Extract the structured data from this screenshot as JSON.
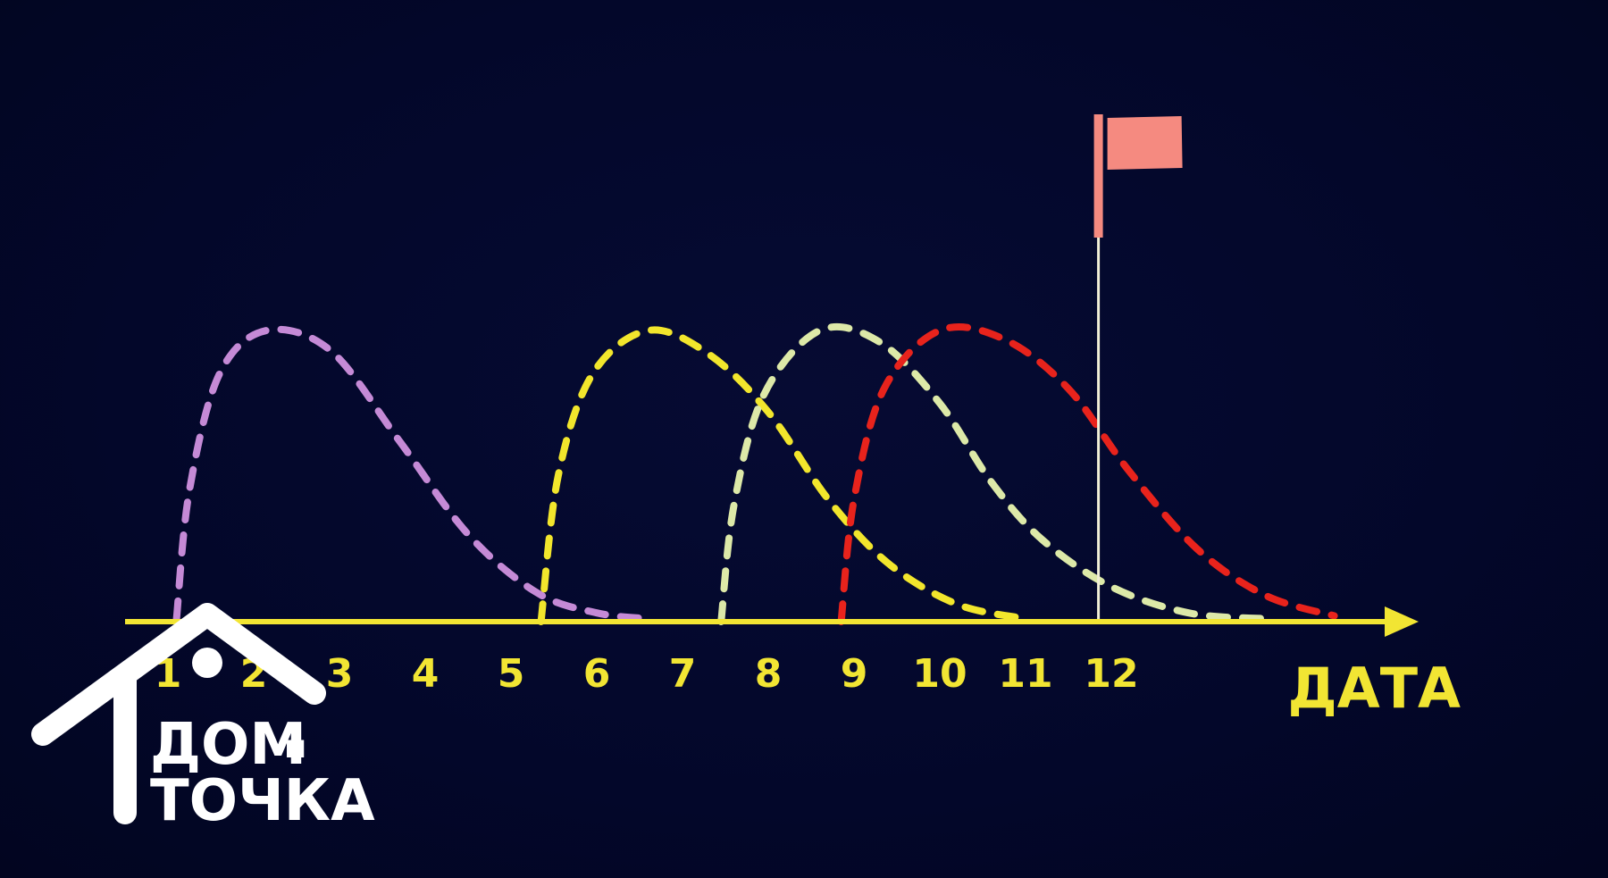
{
  "chart_data": {
    "type": "line",
    "xlabel": "ДАТА",
    "categories": [
      "1",
      "2",
      "3",
      "4",
      "5",
      "6",
      "7",
      "8",
      "9",
      "10",
      "11",
      "12"
    ],
    "xlim": [
      0.5,
      15.5
    ],
    "ylim": [
      0,
      1
    ],
    "grid": false,
    "legend": "none",
    "axis_color": "#f2e533",
    "marker": {
      "type": "flag",
      "x": 11.85,
      "color": "#f58a80"
    },
    "series": [
      {
        "color": "#c58ad6",
        "values": [
          [
            1.1,
            0.01
          ],
          [
            1.25,
            0.45
          ],
          [
            1.6,
            0.85
          ],
          [
            2.15,
            1.0
          ],
          [
            2.9,
            0.93
          ],
          [
            3.7,
            0.62
          ],
          [
            4.5,
            0.3
          ],
          [
            5.3,
            0.1
          ],
          [
            6.0,
            0.03
          ],
          [
            6.6,
            0.01
          ]
        ]
      },
      {
        "color": "#f2e62c",
        "values": [
          [
            5.35,
            0.0
          ],
          [
            5.55,
            0.5
          ],
          [
            5.95,
            0.85
          ],
          [
            6.6,
            1.0
          ],
          [
            7.3,
            0.92
          ],
          [
            8.0,
            0.72
          ],
          [
            8.7,
            0.42
          ],
          [
            9.4,
            0.2
          ],
          [
            10.2,
            0.06
          ],
          [
            11.0,
            0.01
          ]
        ]
      },
      {
        "color": "#dde9a8",
        "values": [
          [
            7.45,
            0.0
          ],
          [
            7.6,
            0.4
          ],
          [
            7.95,
            0.78
          ],
          [
            8.6,
            1.0
          ],
          [
            9.3,
            0.96
          ],
          [
            10.0,
            0.75
          ],
          [
            10.6,
            0.48
          ],
          [
            11.2,
            0.28
          ],
          [
            12.0,
            0.12
          ],
          [
            12.9,
            0.03
          ],
          [
            13.8,
            0.01
          ]
        ]
      },
      {
        "color": "#e8231c",
        "values": [
          [
            8.85,
            0.0
          ],
          [
            9.0,
            0.42
          ],
          [
            9.35,
            0.8
          ],
          [
            10.0,
            1.0
          ],
          [
            10.75,
            0.97
          ],
          [
            11.5,
            0.8
          ],
          [
            12.2,
            0.52
          ],
          [
            13.0,
            0.25
          ],
          [
            13.8,
            0.09
          ],
          [
            14.6,
            0.02
          ]
        ]
      }
    ]
  },
  "logo": {
    "line1": "ДОМ",
    "connector": "и",
    "line2": "ТОЧКА"
  }
}
